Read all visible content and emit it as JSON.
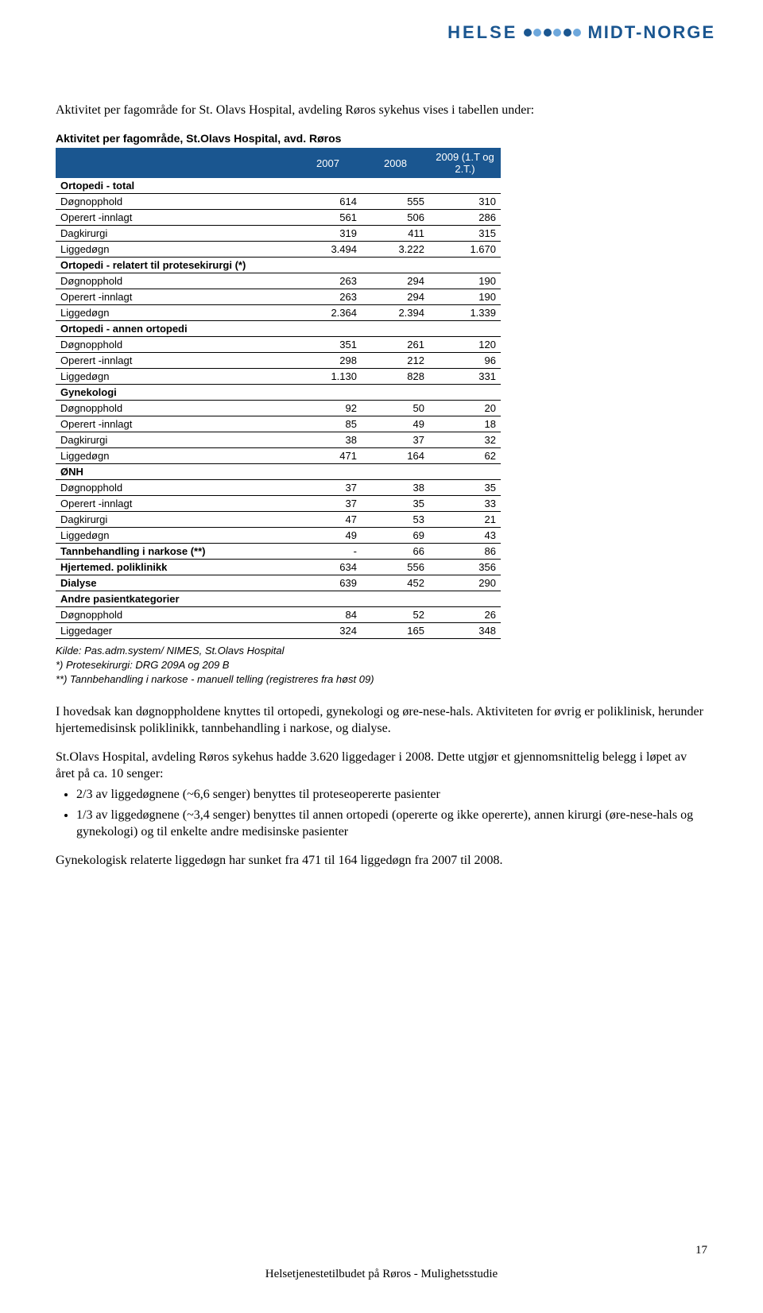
{
  "logo": {
    "helse": "HELSE",
    "midt": "MIDT-NORGE",
    "dot_dark": "#1a5690",
    "dot_light": "#6ea8dc"
  },
  "intro": "Aktivitet per fagområde for St. Olavs Hospital, avdeling Røros sykehus vises i tabellen under:",
  "table": {
    "title": "Aktivitet per fagområde, St.Olavs Hospital, avd. Røros",
    "head_bg": "#1a5690",
    "head_fg": "#ffffff",
    "columns": [
      "",
      "2007",
      "2008",
      "2009 (1.T og 2.T.)"
    ],
    "sections": [
      {
        "label": "Ortopedi - total",
        "rows": [
          [
            "Døgnopphold",
            "614",
            "555",
            "310"
          ],
          [
            "Operert -innlagt",
            "561",
            "506",
            "286"
          ],
          [
            "Dagkirurgi",
            "319",
            "411",
            "315"
          ],
          [
            "Liggedøgn",
            "3.494",
            "3.222",
            "1.670"
          ]
        ]
      },
      {
        "label": "Ortopedi - relatert til protesekirurgi (*)",
        "rows": [
          [
            "Døgnopphold",
            "263",
            "294",
            "190"
          ],
          [
            "Operert -innlagt",
            "263",
            "294",
            "190"
          ],
          [
            "Liggedøgn",
            "2.364",
            "2.394",
            "1.339"
          ]
        ]
      },
      {
        "label": "Ortopedi - annen ortopedi",
        "rows": [
          [
            "Døgnopphold",
            "351",
            "261",
            "120"
          ],
          [
            "Operert -innlagt",
            "298",
            "212",
            "96"
          ],
          [
            "Liggedøgn",
            "1.130",
            "828",
            "331"
          ]
        ]
      },
      {
        "label": "Gynekologi",
        "rows": [
          [
            "Døgnopphold",
            "92",
            "50",
            "20"
          ],
          [
            "Operert -innlagt",
            "85",
            "49",
            "18"
          ],
          [
            "Dagkirurgi",
            "38",
            "37",
            "32"
          ],
          [
            "Liggedøgn",
            "471",
            "164",
            "62"
          ]
        ]
      },
      {
        "label": "ØNH",
        "rows": [
          [
            "Døgnopphold",
            "37",
            "38",
            "35"
          ],
          [
            "Operert -innlagt",
            "37",
            "35",
            "33"
          ],
          [
            "Dagkirurgi",
            "47",
            "53",
            "21"
          ],
          [
            "Liggedøgn",
            "49",
            "69",
            "43"
          ]
        ]
      },
      {
        "label": null,
        "rows": [
          [
            "Tannbehandling i narkose (**)",
            "-",
            "66",
            "86"
          ],
          [
            "Hjertemed. poliklinikk",
            "634",
            "556",
            "356"
          ],
          [
            "Dialyse",
            "639",
            "452",
            "290"
          ]
        ],
        "bold_rows": true
      },
      {
        "label": "Andre pasientkategorier",
        "rows": [
          [
            "Døgnopphold",
            "84",
            "52",
            "26"
          ],
          [
            "Liggedager",
            "324",
            "165",
            "348"
          ]
        ]
      }
    ]
  },
  "notes": {
    "l1": "Kilde: Pas.adm.system/ NIMES, St.Olavs Hospital",
    "l2": "*) Protesekirurgi: DRG 209A og 209 B",
    "l3": "**) Tannbehandling i narkose - manuell telling (registreres fra høst 09)"
  },
  "para1": "I hovedsak kan døgnoppholdene knyttes til ortopedi, gynekologi og øre-nese-hals. Aktiviteten for øvrig er poliklinisk, herunder hjertemedisinsk poliklinikk, tannbehandling i narkose, og dialyse.",
  "para2": "St.Olavs Hospital, avdeling Røros sykehus hadde 3.620 liggedager i 2008. Dette utgjør et gjennomsnittelig belegg i løpet av året på ca. 10 senger:",
  "bullets": [
    "2/3 av liggedøgnene (~6,6 senger) benyttes til proteseopererte pasienter",
    "1/3 av liggedøgnene (~3,4 senger) benyttes til annen ortopedi (opererte og ikke opererte), annen kirurgi (øre-nese-hals og gynekologi) og til enkelte andre medisinske pasienter"
  ],
  "para3": "Gynekologisk relaterte liggedøgn har sunket fra 471 til 164 liggedøgn fra 2007 til 2008.",
  "footer": "Helsetjenestetilbudet på Røros - Mulighetsstudie",
  "page_num": "17"
}
